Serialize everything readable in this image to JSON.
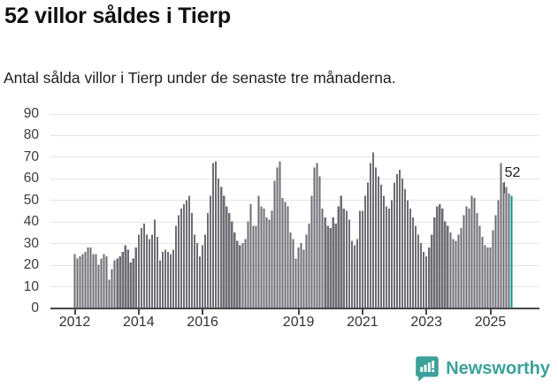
{
  "header": {
    "title": "52 villor såldes i Tierp",
    "subtitle": "Antal sålda villor i Tierp under de senaste tre månaderna."
  },
  "chart_data": {
    "type": "bar",
    "title": "52 villor såldes i Tierp",
    "xlabel": "",
    "ylabel": "",
    "ylim": [
      0,
      90
    ],
    "y_ticks": [
      0,
      10,
      20,
      30,
      40,
      50,
      60,
      70,
      80,
      90
    ],
    "x_ticks": [
      2012,
      2014,
      2016,
      2019,
      2021,
      2023,
      2025
    ],
    "grid": true,
    "frequency": "monthly",
    "x_start": "2012-01",
    "x_end": "2025-09",
    "values": [
      25,
      23,
      24,
      25,
      26,
      28,
      28,
      25,
      25,
      20,
      23,
      25,
      24,
      13,
      18,
      22,
      23,
      24,
      26,
      29,
      27,
      21,
      23,
      28,
      34,
      37,
      39,
      34,
      32,
      34,
      41,
      33,
      22,
      26,
      27,
      26,
      25,
      27,
      38,
      43,
      46,
      48,
      50,
      52,
      44,
      34,
      30,
      24,
      29,
      34,
      44,
      52,
      67,
      68,
      60,
      56,
      52,
      47,
      44,
      40,
      35,
      31,
      29,
      30,
      32,
      40,
      48,
      38,
      38,
      52,
      47,
      46,
      42,
      41,
      45,
      59,
      65,
      68,
      51,
      49,
      47,
      35,
      32,
      23,
      28,
      30,
      27,
      34,
      39,
      52,
      65,
      67,
      61,
      46,
      42,
      38,
      37,
      42,
      39,
      47,
      52,
      46,
      45,
      41,
      31,
      29,
      32,
      45,
      45,
      52,
      58,
      67,
      72,
      65,
      61,
      57,
      52,
      47,
      46,
      50,
      58,
      62,
      64,
      60,
      55,
      50,
      46,
      42,
      38,
      34,
      30,
      26,
      24,
      28,
      34,
      42,
      47,
      48,
      46,
      40,
      38,
      35,
      32,
      31,
      34,
      37,
      43,
      47,
      46,
      52,
      51,
      44,
      38,
      33,
      29,
      28,
      28,
      36,
      43,
      50,
      67,
      58,
      56,
      53,
      52
    ],
    "highlight_last_value": 52,
    "annotation_label": "52",
    "colors": {
      "bar": "#6e6c73",
      "highlight": "#0a9a8e",
      "grid": "#e4e4e4",
      "axis": "#47474a",
      "tick_text": "#333333"
    }
  },
  "footer": {
    "brand": "Newsworthy",
    "brand_color": "#3ba19a"
  }
}
